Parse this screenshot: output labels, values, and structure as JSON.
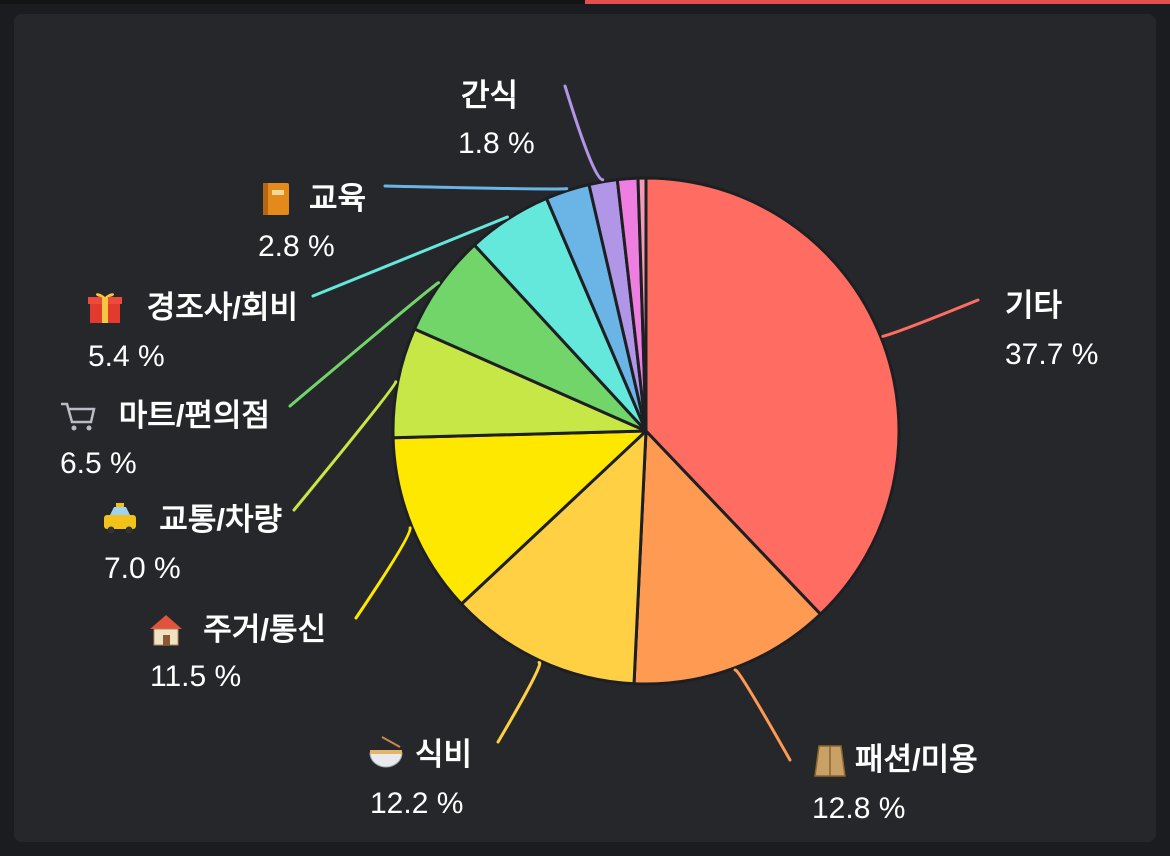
{
  "colors": {
    "background": "#26272b",
    "slice_border": "#1e1f22",
    "top_accent": "#e2504c"
  },
  "chart_data": {
    "type": "pie",
    "title": "",
    "slices": [
      {
        "label": "기타",
        "icon": "",
        "value": 37.7,
        "value_label": "37.7 %",
        "color": "#ff6c62"
      },
      {
        "label": "패션/미용",
        "icon": "coat-icon",
        "value": 12.8,
        "value_label": "12.8 %",
        "color": "#ff9a52"
      },
      {
        "label": "식비",
        "icon": "noodle-bowl-icon",
        "value": 12.2,
        "value_label": "12.2 %",
        "color": "#ffd044"
      },
      {
        "label": "주거/통신",
        "icon": "house-icon",
        "value": 11.5,
        "value_label": "11.5 %",
        "color": "#ffe800"
      },
      {
        "label": "교통/차량",
        "icon": "taxi-icon",
        "value": 7.0,
        "value_label": "7.0 %",
        "color": "#c6e745"
      },
      {
        "label": "마트/편의점",
        "icon": "shopping-cart-icon",
        "value": 6.5,
        "value_label": "6.5 %",
        "color": "#72d56a"
      },
      {
        "label": "경조사/회비",
        "icon": "gift-icon",
        "value": 5.4,
        "value_label": "5.4 %",
        "color": "#64e8dc"
      },
      {
        "label": "교육",
        "icon": "book-icon",
        "value": 2.8,
        "value_label": "2.8 %",
        "color": "#6ab4e6"
      },
      {
        "label": "간식",
        "icon": "",
        "value": 1.8,
        "value_label": "1.8 %",
        "color": "#b196e8"
      },
      {
        "label": "",
        "icon": "",
        "value": 1.3,
        "value_label": "",
        "color": "#ee7ee0"
      },
      {
        "label": "",
        "icon": "",
        "value": 0.5,
        "value_label": "",
        "color": "#f29ab6"
      }
    ]
  }
}
